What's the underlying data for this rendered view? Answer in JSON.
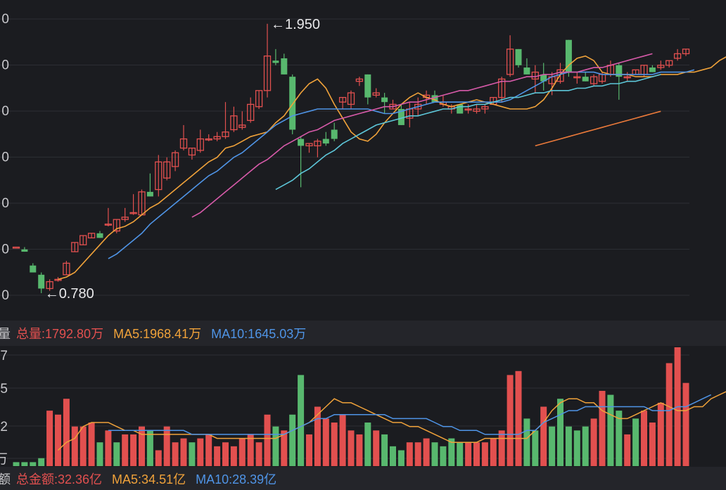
{
  "volume_legend": {
    "head": "量",
    "total": "总量:1792.80万",
    "ma5": "MA5:1968.41万",
    "ma10": "MA10:1645.03万"
  },
  "amount_legend": {
    "head": "额",
    "total": "总金额:32.36亿",
    "ma5": "MA5:34.51亿",
    "ma10": "MA10:28.39亿"
  },
  "colors": {
    "up": "#e2504f",
    "down": "#58b86e",
    "ma5": "#f0a23a",
    "ma10": "#4f94e6",
    "ma20": "#d75aa9",
    "ma30": "#5dc6d8",
    "ma60": "#ec7a3a",
    "grid": "#2c2e33",
    "axis": "#c8c8cc"
  },
  "chart_data": [
    {
      "type": "candlestick",
      "y_ticks": [
        "0",
        "0",
        "0",
        "0",
        "0",
        "0",
        "0"
      ],
      "annotations": [
        {
          "text": "←1.950",
          "value": 1.95
        },
        {
          "text": "←0.780",
          "value": 0.78
        }
      ],
      "candles": [
        [
          0.98,
          0.98,
          0.98,
          0.98
        ],
        [
          0.97,
          0.98,
          0.96,
          0.96
        ],
        [
          0.9,
          0.91,
          0.87,
          0.87
        ],
        [
          0.86,
          0.87,
          0.78,
          0.8
        ],
        [
          0.8,
          0.84,
          0.79,
          0.83
        ],
        [
          0.84,
          0.85,
          0.83,
          0.84
        ],
        [
          0.86,
          0.92,
          0.86,
          0.91
        ],
        [
          0.96,
          1.0,
          0.96,
          1.0
        ],
        [
          0.99,
          1.03,
          0.99,
          1.03
        ],
        [
          1.02,
          1.04,
          1.02,
          1.04
        ],
        [
          1.04,
          1.05,
          1.02,
          1.02
        ],
        [
          1.08,
          1.15,
          1.07,
          1.08
        ],
        [
          1.05,
          1.1,
          1.04,
          1.1
        ],
        [
          1.1,
          1.15,
          1.09,
          1.11
        ],
        [
          1.13,
          1.21,
          1.12,
          1.13
        ],
        [
          1.12,
          1.23,
          1.12,
          1.22
        ],
        [
          1.22,
          1.3,
          1.2,
          1.2
        ],
        [
          1.23,
          1.38,
          1.2,
          1.35
        ],
        [
          1.28,
          1.37,
          1.27,
          1.35
        ],
        [
          1.33,
          1.4,
          1.31,
          1.39
        ],
        [
          1.41,
          1.51,
          1.4,
          1.45
        ],
        [
          1.38,
          1.41,
          1.36,
          1.41
        ],
        [
          1.4,
          1.49,
          1.39,
          1.45
        ],
        [
          1.45,
          1.47,
          1.44,
          1.45
        ],
        [
          1.45,
          1.48,
          1.44,
          1.46
        ],
        [
          1.46,
          1.61,
          1.45,
          1.48
        ],
        [
          1.49,
          1.59,
          1.48,
          1.55
        ],
        [
          1.5,
          1.57,
          1.49,
          1.51
        ],
        [
          1.53,
          1.63,
          1.52,
          1.6
        ],
        [
          1.59,
          1.66,
          1.58,
          1.66
        ],
        [
          1.66,
          1.95,
          1.63,
          1.81
        ],
        [
          1.79,
          1.84,
          1.77,
          1.78
        ],
        [
          1.8,
          1.82,
          1.73,
          1.73
        ],
        [
          1.72,
          1.73,
          1.47,
          1.49
        ],
        [
          1.45,
          1.46,
          1.24,
          1.42
        ],
        [
          1.42,
          1.43,
          1.39,
          1.43
        ],
        [
          1.42,
          1.45,
          1.37,
          1.44
        ],
        [
          1.45,
          1.48,
          1.42,
          1.43
        ],
        [
          1.49,
          1.52,
          1.44,
          1.45
        ],
        [
          1.61,
          1.63,
          1.58,
          1.63
        ],
        [
          1.6,
          1.66,
          1.58,
          1.65
        ],
        [
          1.7,
          1.72,
          1.68,
          1.71
        ],
        [
          1.73,
          1.73,
          1.6,
          1.63
        ],
        [
          1.64,
          1.67,
          1.63,
          1.65
        ],
        [
          1.63,
          1.65,
          1.56,
          1.61
        ],
        [
          1.58,
          1.62,
          1.58,
          1.6
        ],
        [
          1.58,
          1.6,
          1.51,
          1.51
        ],
        [
          1.54,
          1.61,
          1.5,
          1.58
        ],
        [
          1.58,
          1.63,
          1.55,
          1.6
        ],
        [
          1.63,
          1.66,
          1.6,
          1.64
        ],
        [
          1.64,
          1.66,
          1.61,
          1.61
        ],
        [
          1.6,
          1.64,
          1.59,
          1.61
        ],
        [
          1.58,
          1.6,
          1.56,
          1.59
        ],
        [
          1.6,
          1.6,
          1.56,
          1.56
        ],
        [
          1.58,
          1.6,
          1.56,
          1.58
        ],
        [
          1.57,
          1.6,
          1.56,
          1.58
        ],
        [
          1.58,
          1.6,
          1.56,
          1.59
        ],
        [
          1.6,
          1.63,
          1.6,
          1.63
        ],
        [
          1.63,
          1.72,
          1.61,
          1.71
        ],
        [
          1.73,
          1.9,
          1.72,
          1.84
        ],
        [
          1.84,
          1.84,
          1.76,
          1.77
        ],
        [
          1.76,
          1.8,
          1.73,
          1.73
        ],
        [
          1.71,
          1.77,
          1.65,
          1.74
        ],
        [
          1.73,
          1.78,
          1.66,
          1.7
        ],
        [
          1.69,
          1.74,
          1.64,
          1.72
        ],
        [
          1.7,
          1.78,
          1.69,
          1.75
        ],
        [
          1.88,
          1.88,
          1.72,
          1.74
        ],
        [
          1.72,
          1.74,
          1.69,
          1.72
        ],
        [
          1.72,
          1.74,
          1.7,
          1.7
        ],
        [
          1.69,
          1.73,
          1.68,
          1.72
        ],
        [
          1.7,
          1.74,
          1.69,
          1.73
        ],
        [
          1.73,
          1.79,
          1.72,
          1.77
        ],
        [
          1.77,
          1.78,
          1.62,
          1.72
        ],
        [
          1.72,
          1.74,
          1.7,
          1.72
        ],
        [
          1.73,
          1.75,
          1.73,
          1.75
        ],
        [
          1.73,
          1.77,
          1.72,
          1.77
        ],
        [
          1.76,
          1.77,
          1.74,
          1.74
        ],
        [
          1.76,
          1.79,
          1.75,
          1.77
        ],
        [
          1.77,
          1.79,
          1.76,
          1.79
        ],
        [
          1.8,
          1.84,
          1.79,
          1.82
        ],
        [
          1.82,
          1.84,
          1.81,
          1.84
        ]
      ],
      "series": [
        {
          "name": "MA5",
          "start": 5,
          "values": [
            0.84,
            0.85,
            0.87,
            0.91,
            0.95,
            0.99,
            1.03,
            1.06,
            1.07,
            1.09,
            1.12,
            1.15,
            1.17,
            1.2,
            1.23,
            1.26,
            1.29,
            1.32,
            1.35,
            1.37,
            1.41,
            1.42,
            1.44,
            1.46,
            1.47,
            1.48,
            1.52,
            1.55,
            1.6,
            1.65,
            1.69,
            1.71,
            1.67,
            1.6,
            1.54,
            1.48,
            1.45,
            1.44,
            1.47,
            1.52,
            1.56,
            1.6,
            1.63,
            1.65,
            1.63,
            1.62,
            1.6,
            1.59,
            1.6,
            1.61,
            1.62,
            1.61,
            1.6,
            1.59,
            1.58,
            1.58,
            1.58,
            1.59,
            1.62,
            1.67,
            1.73,
            1.77,
            1.8,
            1.81,
            1.79,
            1.74,
            1.73,
            1.73,
            1.73,
            1.72,
            1.72,
            1.72,
            1.73,
            1.73,
            1.73,
            1.74,
            1.74,
            1.75,
            1.76,
            1.79,
            1.81
          ]
        },
        {
          "name": "MA10",
          "start": 11,
          "values": [
            0.93,
            0.95,
            0.98,
            1.01,
            1.04,
            1.08,
            1.11,
            1.14,
            1.17,
            1.2,
            1.23,
            1.26,
            1.29,
            1.31,
            1.34,
            1.37,
            1.39,
            1.42,
            1.45,
            1.48,
            1.51,
            1.53,
            1.55,
            1.56,
            1.57,
            1.58,
            1.58,
            1.58,
            1.58,
            1.58,
            1.58,
            1.58,
            1.57,
            1.56,
            1.56,
            1.57,
            1.58,
            1.59,
            1.6,
            1.61,
            1.61,
            1.61,
            1.61,
            1.61,
            1.61,
            1.61,
            1.61,
            1.61,
            1.62,
            1.64,
            1.66,
            1.68,
            1.7,
            1.72,
            1.73,
            1.74,
            1.74,
            1.74,
            1.74,
            1.73,
            1.73,
            1.73,
            1.73,
            1.73,
            1.73,
            1.73,
            1.74,
            1.74,
            1.74,
            1.74,
            1.75
          ]
        },
        {
          "name": "MA20",
          "start": 21,
          "values": [
            1.11,
            1.13,
            1.16,
            1.19,
            1.22,
            1.25,
            1.28,
            1.31,
            1.34,
            1.36,
            1.39,
            1.42,
            1.44,
            1.46,
            1.48,
            1.49,
            1.51,
            1.53,
            1.54,
            1.55,
            1.56,
            1.57,
            1.58,
            1.59,
            1.59,
            1.6,
            1.61,
            1.61,
            1.62,
            1.63,
            1.64,
            1.65,
            1.66,
            1.66,
            1.67,
            1.68,
            1.69,
            1.7,
            1.7,
            1.71,
            1.72,
            1.72,
            1.73,
            1.73,
            1.74,
            1.74,
            1.74,
            1.75,
            1.76,
            1.76,
            1.77,
            1.78,
            1.79,
            1.8,
            1.81,
            1.82
          ]
        },
        {
          "name": "MA30",
          "start": 31,
          "values": [
            1.23,
            1.25,
            1.27,
            1.3,
            1.32,
            1.35,
            1.38,
            1.4,
            1.43,
            1.45,
            1.47,
            1.49,
            1.51,
            1.52,
            1.53,
            1.54,
            1.55,
            1.55,
            1.56,
            1.57,
            1.58,
            1.58,
            1.59,
            1.59,
            1.6,
            1.6,
            1.61,
            1.62,
            1.63,
            1.63,
            1.64,
            1.65,
            1.65,
            1.66,
            1.66,
            1.66,
            1.67,
            1.67,
            1.68,
            1.68,
            1.69,
            1.69,
            1.7,
            1.7,
            1.71,
            1.72,
            1.73
          ]
        },
        {
          "name": "MA60",
          "start": 62,
          "values": [
            1.42,
            1.43,
            1.44,
            1.45,
            1.46,
            1.47,
            1.48,
            1.49,
            1.5,
            1.51,
            1.52,
            1.53,
            1.54,
            1.55,
            1.56,
            1.57
          ]
        }
      ]
    },
    {
      "type": "bar",
      "y_ticks": [
        "7",
        "5",
        "2",
        "万"
      ],
      "values": [
        1,
        1,
        1,
        2,
        14,
        13,
        17,
        10,
        10,
        11,
        6,
        9,
        6,
        8,
        8,
        10,
        9,
        4,
        10,
        6,
        7,
        6,
        7,
        8,
        5,
        6,
        5,
        7,
        8,
        6,
        13,
        10,
        9,
        13,
        23,
        8,
        15,
        12,
        11,
        13,
        9,
        8,
        11,
        9,
        8,
        5,
        4,
        6,
        6,
        7,
        6,
        5,
        7,
        6,
        6,
        6,
        6,
        7,
        9,
        23,
        24,
        12,
        9,
        15,
        10,
        17,
        10,
        9,
        10,
        12,
        19,
        18,
        14,
        8,
        12,
        14,
        11,
        16,
        26,
        30,
        21
      ],
      "dirs": [
        0,
        0,
        0,
        0,
        1,
        1,
        1,
        1,
        1,
        1,
        0,
        1,
        0,
        1,
        1,
        1,
        0,
        1,
        1,
        1,
        1,
        0,
        1,
        1,
        1,
        1,
        1,
        1,
        1,
        1,
        1,
        0,
        1,
        0,
        0,
        1,
        1,
        1,
        1,
        1,
        1,
        1,
        0,
        1,
        0,
        0,
        0,
        1,
        1,
        1,
        0,
        0,
        0,
        0,
        1,
        1,
        1,
        1,
        1,
        1,
        1,
        0,
        0,
        1,
        0,
        0,
        0,
        0,
        0,
        1,
        1,
        0,
        0,
        1,
        0,
        1,
        1,
        1,
        1,
        1,
        1
      ],
      "series": [
        {
          "name": "MA5",
          "start": 5,
          "values": [
            4,
            6,
            7,
            10,
            11,
            11,
            11,
            10,
            9,
            9,
            8,
            8,
            8,
            8,
            8,
            8,
            8,
            8,
            8,
            7,
            7,
            7,
            7,
            7,
            7,
            7,
            7,
            8,
            9,
            10,
            11,
            13,
            15,
            17,
            16,
            16,
            15,
            14,
            13,
            12,
            11,
            11,
            10,
            10,
            9,
            8,
            7,
            6,
            6,
            6,
            6,
            7,
            7,
            7,
            7,
            7,
            7,
            9,
            11,
            14,
            16,
            17,
            17,
            16,
            16,
            14,
            13,
            12,
            12,
            13,
            14,
            15,
            16,
            15,
            14,
            14,
            15,
            15,
            17,
            18,
            19
          ]
        },
        {
          "name": "MA10",
          "start": 11,
          "values": [
            9,
            9,
            9,
            9,
            9,
            9,
            9,
            9,
            9,
            9,
            8,
            8,
            8,
            8,
            8,
            8,
            8,
            8,
            8,
            8,
            8,
            8,
            9,
            10,
            11,
            12,
            12,
            13,
            13,
            13,
            13,
            13,
            13,
            13,
            12,
            12,
            12,
            12,
            12,
            11,
            10,
            10,
            9,
            9,
            9,
            8,
            8,
            8,
            8,
            8,
            9,
            9,
            11,
            12,
            13,
            14,
            14,
            15,
            15,
            15,
            15,
            15,
            15,
            15,
            15,
            14,
            14,
            14,
            15,
            15,
            16,
            17,
            18
          ]
        }
      ]
    }
  ]
}
